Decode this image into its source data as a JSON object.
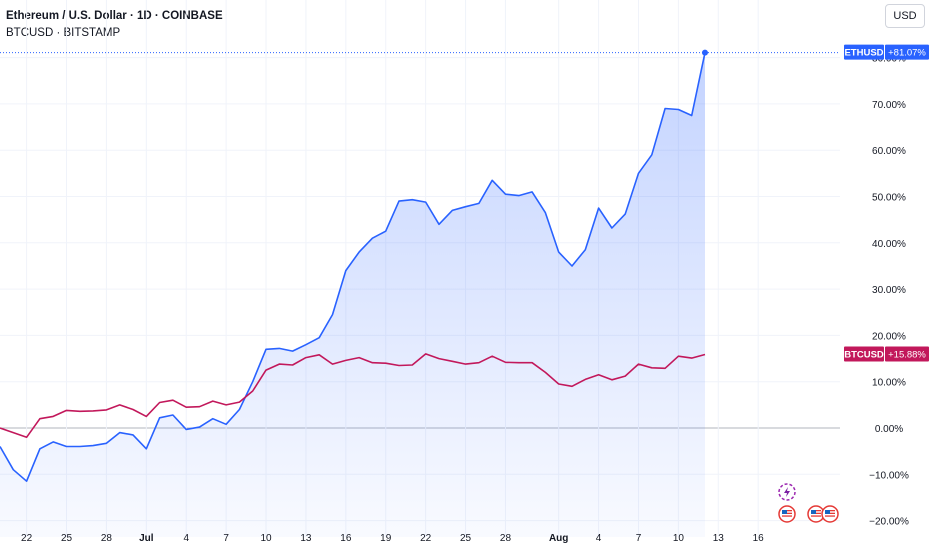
{
  "header": {
    "title": "Ethereum / U.S. Dollar · 1D · COINBASE",
    "compare_symbol": "BTCUSD · BITSTAMP",
    "currency": "USD"
  },
  "colors": {
    "eth": "#2962ff",
    "btc": "#c2185b",
    "grid": "#f0f3fa",
    "zero_line": "#b2b5be",
    "text": "#131722"
  },
  "icons": [
    "lightning-event-icon",
    "us-flag-icon"
  ],
  "chart_data": {
    "type": "area",
    "y_unit": "%",
    "ylim": [
      -22,
      86
    ],
    "yticks": [
      "80.00%",
      "70.00%",
      "60.00%",
      "50.00%",
      "40.00%",
      "30.00%",
      "20.00%",
      "10.00%",
      "0.00%",
      "−10.00%",
      "−20.00%"
    ],
    "ytick_values": [
      80,
      70,
      60,
      50,
      40,
      30,
      20,
      10,
      0,
      -10,
      -20
    ],
    "xticks": [
      "22",
      "25",
      "28",
      "Jul",
      "4",
      "7",
      "10",
      "13",
      "16",
      "19",
      "22",
      "25",
      "28",
      "Aug",
      "4",
      "7",
      "10",
      "13",
      "16"
    ],
    "xtick_positions": [
      22,
      25,
      28,
      31,
      34,
      37,
      40,
      43,
      46,
      49,
      52,
      55,
      58,
      62,
      65,
      68,
      71,
      74,
      77
    ],
    "xlim": [
      20,
      83
    ],
    "grid": true,
    "series": [
      {
        "name": "ETHUSD",
        "last_label": "+81.07%",
        "x": [
          20,
          21,
          22,
          23,
          24,
          25,
          26,
          27,
          28,
          29,
          30,
          31,
          32,
          33,
          34,
          35,
          36,
          37,
          38,
          39,
          40,
          41,
          42,
          43,
          44,
          45,
          46,
          47,
          48,
          49,
          50,
          51,
          52,
          53,
          54,
          55,
          56,
          57,
          58,
          59,
          60,
          61,
          62,
          63,
          64,
          65,
          66,
          67,
          68,
          69,
          70,
          71,
          72,
          73,
          74
        ],
        "values": [
          -4,
          -9,
          -11.5,
          -4.5,
          -3,
          -4,
          -4,
          -3.8,
          -3.3,
          -1,
          -1.5,
          -4.5,
          2.2,
          2.8,
          -0.3,
          0.2,
          2,
          0.8,
          4,
          10,
          17,
          17.2,
          16.6,
          18,
          19.5,
          24.5,
          34,
          38,
          41,
          42.5,
          49,
          49.3,
          48.8,
          44,
          47,
          47.8,
          48.5,
          53.5,
          50.5,
          50.2,
          51,
          46.5,
          38,
          35,
          38.5,
          47.5,
          43.2,
          46.2,
          55,
          59,
          69,
          68.8,
          67.5,
          81.07,
          null
        ]
      },
      {
        "name": "BTCUSD",
        "last_label": "+15.88%",
        "x": [
          20,
          21,
          22,
          23,
          24,
          25,
          26,
          27,
          28,
          29,
          30,
          31,
          32,
          33,
          34,
          35,
          36,
          37,
          38,
          39,
          40,
          41,
          42,
          43,
          44,
          45,
          46,
          47,
          48,
          49,
          50,
          51,
          52,
          53,
          54,
          55,
          56,
          57,
          58,
          59,
          60,
          61,
          62,
          63,
          64,
          65,
          66,
          67,
          68,
          69,
          70,
          71,
          72,
          73,
          74
        ],
        "values": [
          0,
          -1,
          -2,
          2,
          2.5,
          3.8,
          3.6,
          3.7,
          3.9,
          5,
          4,
          2.5,
          5.5,
          6,
          4.5,
          4.6,
          5.8,
          5,
          5.6,
          8,
          12.5,
          13.8,
          13.6,
          15.2,
          15.8,
          13.8,
          14.6,
          15.2,
          14.1,
          14,
          13.5,
          13.6,
          16,
          15,
          14.4,
          13.8,
          14.1,
          15.5,
          14.2,
          14.1,
          14.1,
          12,
          9.5,
          9,
          10.5,
          11.5,
          10.4,
          11.2,
          13.8,
          13,
          12.9,
          15.5,
          15.1,
          15.88,
          null
        ]
      }
    ]
  }
}
